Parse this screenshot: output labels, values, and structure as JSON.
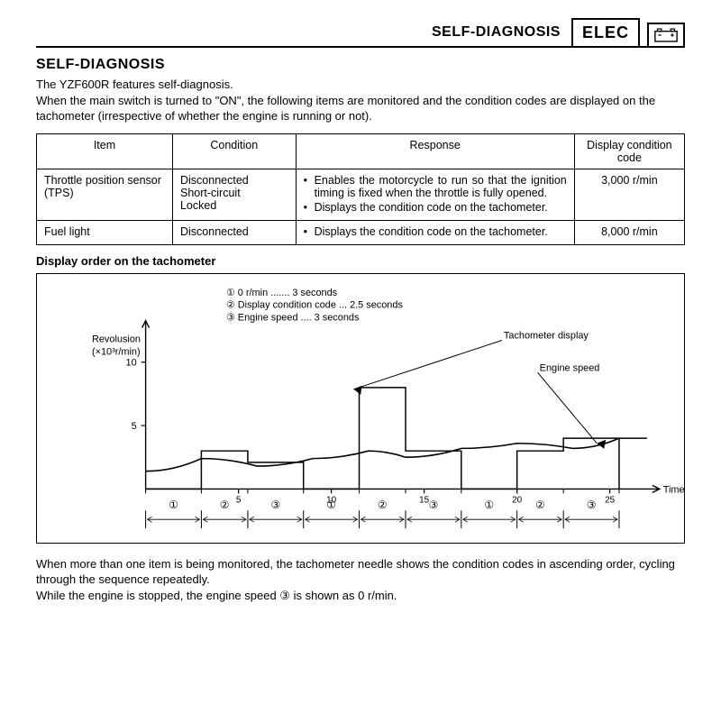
{
  "header": {
    "running_title": "SELF-DIAGNOSIS",
    "box_label": "ELEC"
  },
  "section": {
    "title": "SELF-DIAGNOSIS",
    "intro": "The YZF600R features self-diagnosis.\nWhen the main switch is turned to \"ON\", the following items are monitored and the condition codes are displayed on the tachometer (irrespective of whether the engine is running or not)."
  },
  "table": {
    "columns": [
      "Item",
      "Condition",
      "Response",
      "Display condition code"
    ],
    "rows": [
      {
        "item": "Throttle position sensor (TPS)",
        "condition": "Disconnected\nShort-circuit\nLocked",
        "response": [
          "Enables the motorcycle to run so that the ignition timing is fixed when the throttle is fully opened.",
          "Displays the condition code on the tachometer."
        ],
        "code": "3,000 r/min"
      },
      {
        "item": "Fuel light",
        "condition": "Disconnected",
        "response": [
          "Displays the condition code on the tachometer."
        ],
        "code": "8,000 r/min"
      }
    ]
  },
  "chart": {
    "subtitle": "Display order on the tachometer",
    "y_label": "Revolusion\n(×10³r/min)",
    "y_ticks": [
      5,
      10
    ],
    "x_label": "Time (seconds)",
    "x_ticks": [
      5,
      10,
      15,
      20,
      25
    ],
    "legend_lines": [
      "① 0 r/min ....... 3 seconds",
      "② Display condition code ... 2.5 seconds",
      "③ Engine speed .... 3 seconds"
    ],
    "annotations": {
      "tach": "Tachometer display",
      "engine": "Engine speed"
    },
    "bars": {
      "type": "step",
      "segments_sec": [
        3,
        2.5,
        3,
        3,
        2.5,
        3,
        3,
        2.5,
        3
      ],
      "heights_k": [
        0,
        3,
        2.1,
        0,
        8,
        3.0,
        0,
        3,
        4.0
      ],
      "phase_labels": [
        "①",
        "②",
        "③",
        "①",
        "②",
        "③",
        "①",
        "②",
        "③"
      ]
    },
    "engine_curve": {
      "type": "wavy-line",
      "points": [
        [
          0,
          1.4
        ],
        [
          3,
          2.4
        ],
        [
          6,
          1.8
        ],
        [
          9,
          2.4
        ],
        [
          12,
          3.0
        ],
        [
          14,
          2.5
        ],
        [
          17,
          3.2
        ],
        [
          20,
          3.6
        ],
        [
          23,
          3.2
        ],
        [
          25.5,
          4.0
        ],
        [
          27,
          4.0
        ]
      ]
    },
    "colors": {
      "axis": "#000000",
      "bar_stroke": "#000000",
      "curve_stroke": "#000000",
      "frame": "#000000",
      "background": "#ffffff"
    },
    "line_width": 1.4,
    "font_size_labels": 11
  },
  "footer": "When more than one item is being monitored, the tachometer needle shows the condition codes in ascending order, cycling through the sequence repeatedly.\nWhile the engine is stopped, the engine speed ③ is shown as 0 r/min."
}
